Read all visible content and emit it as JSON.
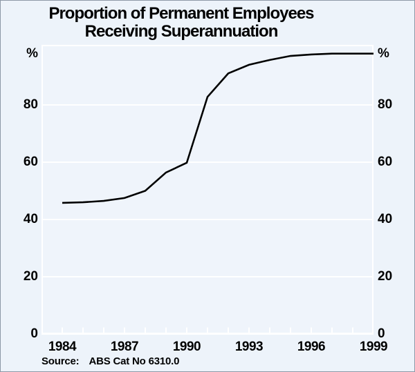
{
  "title": {
    "line1": "Proportion of Permanent Employees",
    "line2": "Receiving Superannuation"
  },
  "source": {
    "label": "Source:",
    "text": "ABS Cat No 6310.0"
  },
  "axes": {
    "percent_symbol": "%",
    "y_tick_values": [
      0,
      20,
      40,
      60,
      80
    ],
    "y_tick_labels": [
      "0",
      "20",
      "40",
      "60",
      "80"
    ],
    "x_tick_values": [
      1984,
      1987,
      1990,
      1993,
      1996,
      1999
    ],
    "x_tick_labels": [
      "1984",
      "1987",
      "1990",
      "1993",
      "1996",
      "1999"
    ]
  },
  "colors": {
    "background": "#edf3fa",
    "plot_background": "#eff4fb",
    "grid": "#ffffff",
    "data_line": "#000000",
    "text": "#000000",
    "border": "#8d98a6"
  },
  "chart_data": {
    "type": "line",
    "title": "Proportion of Permanent Employees Receiving Superannuation",
    "x": [
      1984,
      1985,
      1986,
      1987,
      1988,
      1989,
      1990,
      1991,
      1992,
      1993,
      1994,
      1995,
      1996,
      1997,
      1998,
      1999
    ],
    "series": [
      {
        "name": "Proportion of permanent employees receiving superannuation (%)",
        "values": [
          45.8,
          46.0,
          46.5,
          47.5,
          50.0,
          56.4,
          59.8,
          82.8,
          91.0,
          94.0,
          95.7,
          97.1,
          97.6,
          97.9,
          97.9,
          97.9
        ]
      }
    ],
    "xlabel": "",
    "ylabel": "%",
    "ylabel_left": "%",
    "ylabel_right": "%",
    "xlim": [
      1983.5,
      1999.5
    ],
    "ylim": [
      0,
      101
    ],
    "y_gridlines": [
      20,
      40,
      60,
      80
    ],
    "grid": "on",
    "legend": "none",
    "source_note": "Source:  ABS Cat No 6310.0"
  }
}
